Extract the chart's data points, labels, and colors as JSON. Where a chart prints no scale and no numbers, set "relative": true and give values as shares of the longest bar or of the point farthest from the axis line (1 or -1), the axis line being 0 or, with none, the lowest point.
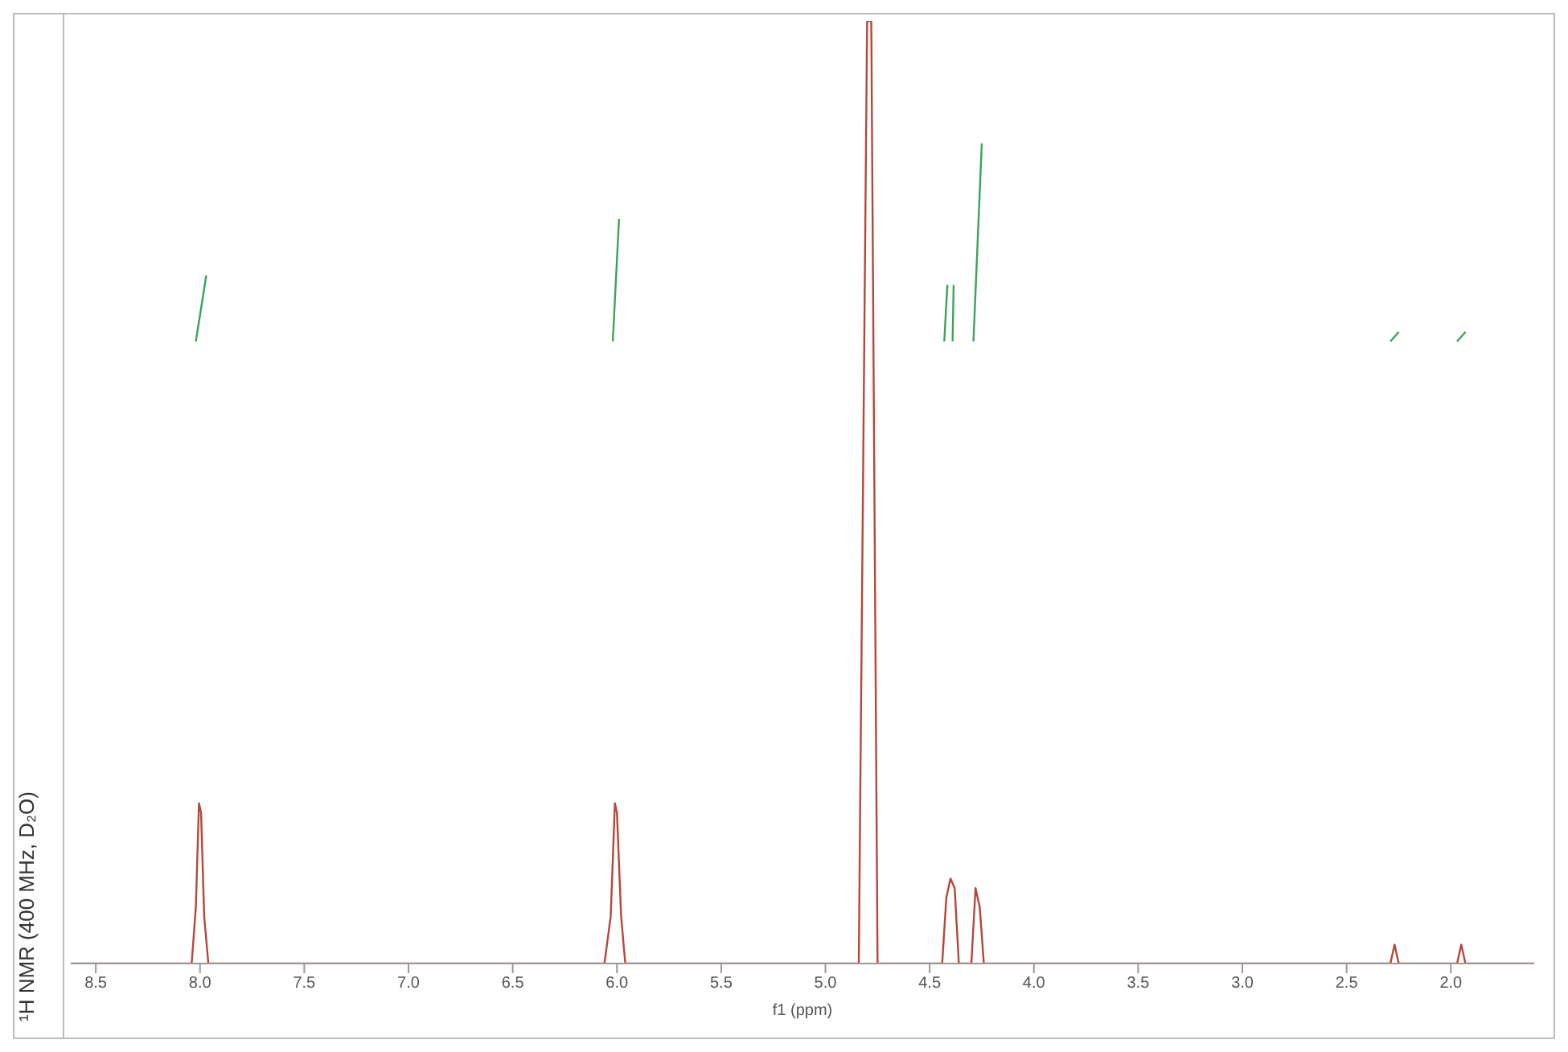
{
  "chart_data": {
    "type": "line",
    "relative": true,
    "ylabel": "¹H NMR (400 MHz, D₂O)",
    "xlabel": "f1 (ppm)",
    "xlim": [
      8.62,
      1.6
    ],
    "xticks": [
      8.5,
      {
        "value": 8,
        "label": "8.0"
      },
      7.5,
      {
        "value": 7,
        "label": "7.0"
      },
      6.5,
      {
        "value": 6,
        "label": "6.0"
      },
      5.5,
      {
        "value": 5,
        "label": "5.0"
      },
      4.5,
      {
        "value": 4,
        "label": "4.0"
      },
      3.5,
      {
        "value": 3,
        "label": "3.0"
      },
      2.5,
      {
        "value": 2,
        "label": "2.0"
      }
    ],
    "marker": "none",
    "line_style": "solid",
    "series": [
      {
        "color": "#b5473a",
        "x": [
          8.62,
          8.04,
          8.02,
          8.005,
          7.995,
          7.98,
          7.96,
          6.06,
          6.03,
          6.01,
          6.0,
          5.98,
          5.96,
          4.84,
          4.8,
          4.78,
          4.75,
          4.44,
          4.42,
          4.4,
          4.38,
          4.36,
          4.3,
          4.28,
          4.26,
          4.24,
          2.29,
          2.27,
          2.25,
          1.97,
          1.95,
          1.93,
          1.6
        ],
        "values": [
          0,
          0,
          0.06,
          0.17,
          0.16,
          0.05,
          0,
          0,
          0.05,
          0.17,
          0.16,
          0.05,
          0,
          0,
          1,
          1,
          0,
          0,
          0.07,
          0.09,
          0.08,
          0,
          0,
          0.08,
          0.06,
          0,
          0,
          0.02,
          0,
          0,
          0.02,
          0,
          0
        ]
      },
      {
        "color": "#3aa35a",
        "x": [
          8.02,
          7.97,
          7.9,
          6.02,
          5.99,
          5.9,
          4.43,
          4.415,
          4.41,
          4.39,
          4.385,
          4.35,
          4.29,
          4.25,
          4.2,
          2.29,
          2.25,
          2.2,
          1.97,
          1.93
        ],
        "values": [
          0.66,
          0.73,
          null,
          0.66,
          0.79,
          null,
          0.66,
          0.72,
          null,
          0.66,
          0.72,
          null,
          0.66,
          0.87,
          null,
          0.66,
          0.67,
          null,
          0.66,
          0.67
        ]
      }
    ]
  }
}
